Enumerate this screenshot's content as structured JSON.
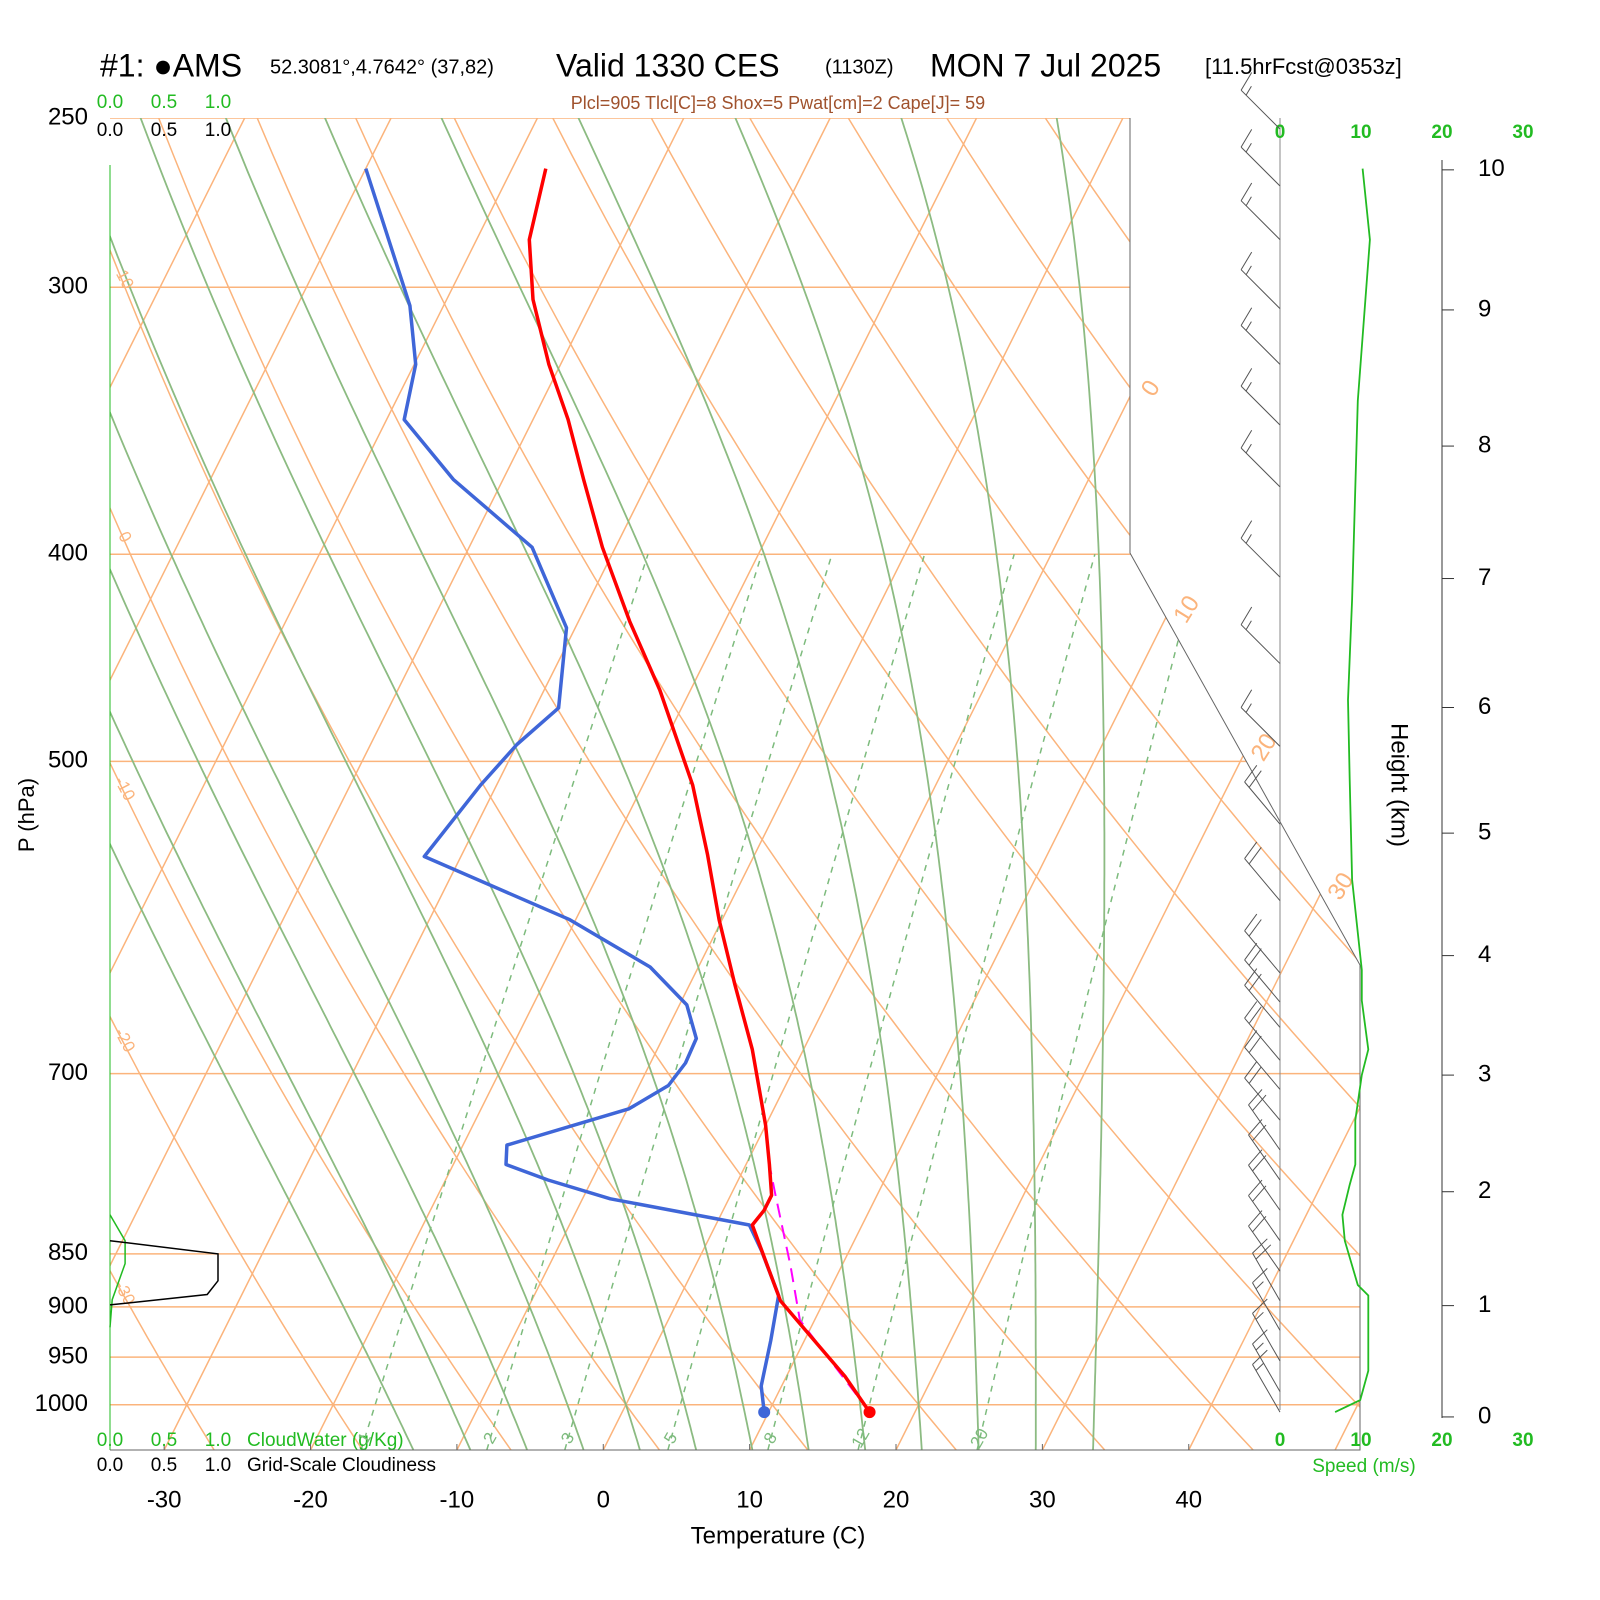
{
  "chart_data": {
    "type": "skewt",
    "title": {
      "station": "#1: ●AMS",
      "location": "52.3081°,4.7642° (37,82)",
      "valid": "Valid 1330 CES",
      "zulu": "(1130Z)",
      "date": "MON 7 Jul 2025",
      "forecast": "[11.5hrFcst@0353z]"
    },
    "subtitle": "Plcl=905 Tlcl[C]=8 Shox=5 Pwat[cm]=2 Cape[J]= 59",
    "x_label": "Temperature (C)",
    "y_label": "P (hPa)",
    "y2_label": "Height (km)",
    "xlim": [
      -33.7,
      51.7
    ],
    "xticks": [
      -30,
      -20,
      -10,
      0,
      10,
      20,
      30,
      40
    ],
    "ylim": [
      1050,
      250
    ],
    "yticks": [
      250,
      300,
      400,
      500,
      700,
      850,
      900,
      950,
      1000
    ],
    "log_y": true,
    "y2ticks": [
      0,
      1,
      2,
      3,
      4,
      5,
      6,
      7,
      8,
      9,
      10
    ],
    "isotherms": [
      -70,
      -60,
      -50,
      -40,
      -30,
      -20,
      -10,
      0,
      10,
      20,
      30,
      40,
      50
    ],
    "isotherm_labels": [
      0,
      10,
      20,
      30
    ],
    "dry_adiabats": [
      -40,
      -30,
      -20,
      -10,
      0,
      10,
      20,
      30,
      40,
      50,
      60,
      70,
      80,
      90,
      100,
      110,
      120
    ],
    "dry_adiabat_labels": [
      10,
      0,
      -10,
      -20,
      -30
    ],
    "moist_adiabats": [
      -16,
      -12,
      -8,
      -4,
      0,
      4,
      8,
      12,
      16,
      20,
      24,
      28,
      32
    ],
    "mixing_ratios": [
      1,
      2,
      3,
      5,
      8,
      12,
      20
    ],
    "background_colors": {
      "dry": "#fbb47c",
      "moist": "#8cbb82",
      "mixing": "#7dbb7d"
    },
    "temperature": {
      "color": "#ff0000",
      "pressure": [
        264,
        285,
        304,
        326,
        346,
        369,
        397,
        430,
        463,
        513,
        553,
        593,
        636,
        682,
        740,
        772,
        798,
        811,
        824,
        856,
        894,
        928,
        970,
        1008
      ],
      "values": [
        -47.7,
        -46.4,
        -44.1,
        -40.8,
        -37.6,
        -34.5,
        -30.9,
        -26.5,
        -22.1,
        -16.6,
        -13.2,
        -10.2,
        -6.9,
        -3.5,
        0.0,
        1.6,
        2.8,
        2.8,
        2.5,
        4.6,
        7.0,
        10.2,
        14.0,
        16.9
      ]
    },
    "dewpoint": {
      "color": "#3f66d8",
      "pressure": [
        264,
        306,
        326,
        346,
        369,
        397,
        433,
        472,
        491,
        513,
        554,
        593,
        624,
        650,
        674,
        692,
        709,
        727,
        756,
        772,
        785,
        801,
        824,
        847,
        889,
        933,
        980,
        1008
      ],
      "values": [
        -60.0,
        -52.3,
        -49.9,
        -48.8,
        -43.4,
        -35.7,
        -30.6,
        -28.4,
        -30.0,
        -31.1,
        -32.5,
        -20.4,
        -13.3,
        -9.5,
        -7.7,
        -7.6,
        -8.0,
        -9.9,
        -17.0,
        -16.4,
        -13.0,
        -8.1,
        2.3,
        4.0,
        6.7,
        7.7,
        8.6,
        9.7
      ]
    },
    "parcel": {
      "color": "#ff00ff",
      "pressure": [
        1008,
        913,
        861,
        795,
        772
      ],
      "values": [
        16.9,
        9.0,
        6.5,
        2.9,
        1.6
      ]
    },
    "speed_label": "Speed (m/s)",
    "speed_lim": [
      0,
      20
    ],
    "speed_ticks": [
      0,
      10,
      20,
      30
    ],
    "wind_speed": {
      "color": "#22bb22",
      "pressure": [
        264,
        285,
        339,
        420,
        468,
        510,
        568,
        626,
        647,
        682,
        701,
        736,
        772,
        789,
        815,
        838,
        879,
        889,
        964,
        995,
        1008
      ],
      "values": [
        10.2,
        11.1,
        9.6,
        8.9,
        8.4,
        8.6,
        8.9,
        10.1,
        10.1,
        10.9,
        10.1,
        9.3,
        9.3,
        8.6,
        7.7,
        8.0,
        9.6,
        10.9,
        10.9,
        9.9,
        6.8
      ]
    },
    "wind_barbs": {
      "color": "#555555",
      "pressure": [
        253,
        269,
        285,
        307,
        326,
        348,
        372,
        410,
        450,
        492,
        535,
        581,
        628,
        648,
        666,
        690,
        712,
        736,
        760,
        785,
        811,
        838,
        866,
        894,
        923,
        954,
        986,
        1008
      ],
      "speed": [
        15,
        15,
        15,
        15,
        15,
        15,
        15,
        15,
        15,
        15,
        20,
        20,
        20,
        20,
        20,
        20,
        20,
        20,
        20,
        20,
        20,
        20,
        20,
        20,
        15,
        15,
        15,
        15
      ],
      "direction": [
        315,
        315,
        315,
        315,
        315,
        315,
        315,
        315,
        315,
        315,
        320,
        320,
        320,
        320,
        320,
        320,
        320,
        320,
        325,
        325,
        325,
        325,
        325,
        330,
        330,
        330,
        330,
        330
      ]
    },
    "cloudwater_label": "CloudWater (g/Kg)",
    "cloudiness_label": "Grid-Scale Cloudiness",
    "cloud_lim": [
      0,
      1
    ],
    "cloud_ticks": [
      {
        "value": 0,
        "label": "0.0"
      },
      {
        "value": 0.5,
        "label": "0.5"
      },
      {
        "value": 1,
        "label": "1.0"
      }
    ],
    "cloudwater": {
      "color": "#22bb22",
      "pressure": [
        815,
        838,
        859,
        893,
        920
      ],
      "values": [
        0,
        0.14,
        0.14,
        0.02,
        0
      ]
    },
    "cloudiness": {
      "color": "#000000",
      "pressure": [
        838,
        850,
        875,
        888,
        898
      ],
      "values": [
        0,
        1.0,
        1.0,
        0.9,
        0
      ]
    }
  }
}
